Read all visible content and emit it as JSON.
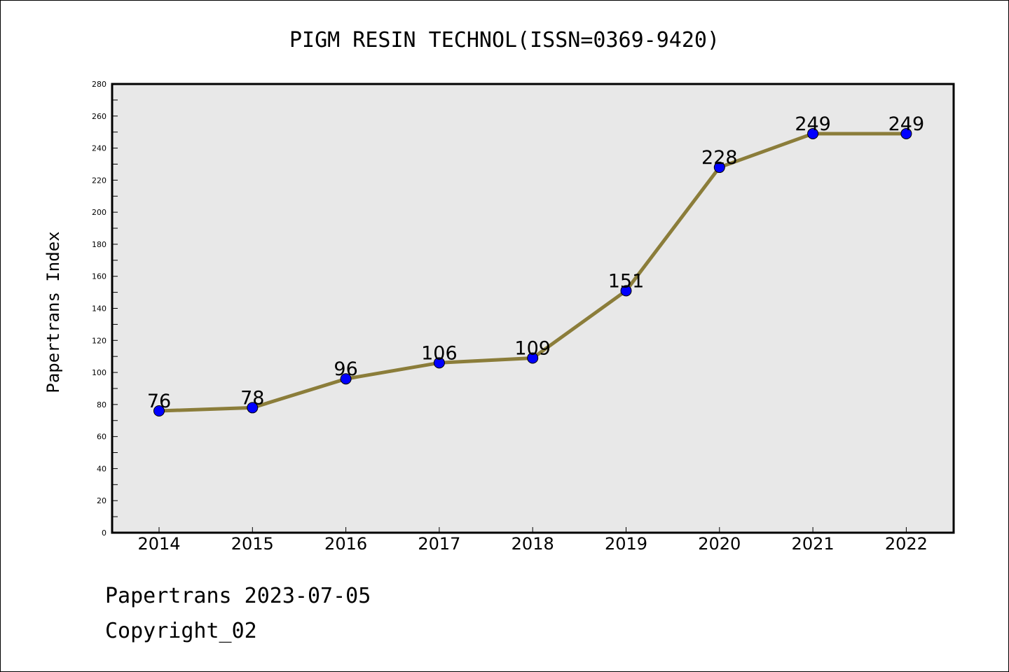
{
  "chart_data": {
    "type": "line",
    "title": "PIGM RESIN TECHNOL(ISSN=0369-9420)",
    "xlabel": "",
    "ylabel": "Papertrans Index",
    "categories": [
      "2014",
      "2015",
      "2016",
      "2017",
      "2018",
      "2019",
      "2020",
      "2021",
      "2022"
    ],
    "values": [
      76,
      78,
      96,
      106,
      109,
      151,
      228,
      249,
      249
    ],
    "data_labels": [
      "76",
      "78",
      "96",
      "106",
      "109",
      "151",
      "228",
      "249",
      "249"
    ],
    "ylim": [
      0,
      280
    ],
    "yticks": [
      0,
      20,
      40,
      60,
      80,
      100,
      120,
      140,
      160,
      180,
      200,
      220,
      240,
      260,
      280
    ],
    "ytick_labels": [
      "0",
      "20",
      "40",
      "60",
      "80",
      "100",
      "120",
      "140",
      "160",
      "180",
      "200",
      "220",
      "240",
      "260",
      "280"
    ],
    "grid": false,
    "colors": {
      "line": "#8B7D3A",
      "marker": "#0000FF",
      "plot_background": "#E8E8E8"
    }
  },
  "footer": {
    "line1": "Papertrans 2023-07-05",
    "line2": "Copyright_02"
  }
}
